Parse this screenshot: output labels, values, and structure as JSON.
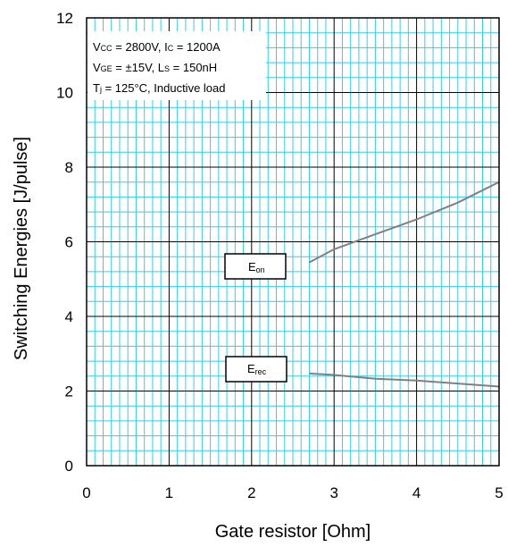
{
  "chart_data": {
    "type": "line",
    "xlabel": "Gate resistor [Ohm]",
    "ylabel": "Switching Energies [J/pulse]",
    "xlim": [
      0,
      5
    ],
    "ylim": [
      0,
      12
    ],
    "x_ticks": [
      "0",
      "1",
      "2",
      "3",
      "4",
      "5"
    ],
    "y_ticks": [
      "0",
      "2",
      "4",
      "6",
      "8",
      "10",
      "12"
    ],
    "grid": "on",
    "conditions": {
      "line1": {
        "v1": "V",
        "s1": "CC",
        "t1": " = 2800V, I",
        "s2": "C",
        "t2": " = 1200A"
      },
      "line2": {
        "v1": "V",
        "s1": "GE",
        "t1": " = ±15V, L",
        "s2": "S",
        "t2": " = 150nH"
      },
      "line3": {
        "v1": "T",
        "s1": "j",
        "t1": " = 125°C, Inductive load"
      }
    },
    "series": [
      {
        "name": "Eon",
        "label": {
          "main": "E",
          "sub": "on"
        },
        "x": [
          2.7,
          3.0,
          3.5,
          4.0,
          4.5,
          5.0
        ],
        "y": [
          5.45,
          5.8,
          6.2,
          6.6,
          7.05,
          7.6
        ]
      },
      {
        "name": "Erec",
        "label": {
          "main": "E",
          "sub": "rec"
        },
        "x": [
          2.7,
          3.0,
          3.5,
          4.0,
          4.5,
          5.0
        ],
        "y": [
          2.47,
          2.43,
          2.33,
          2.28,
          2.2,
          2.12
        ]
      }
    ]
  },
  "colors": {
    "minor_grid": "#33ccee",
    "major_grid": "#000000",
    "series_line": "#808080"
  }
}
